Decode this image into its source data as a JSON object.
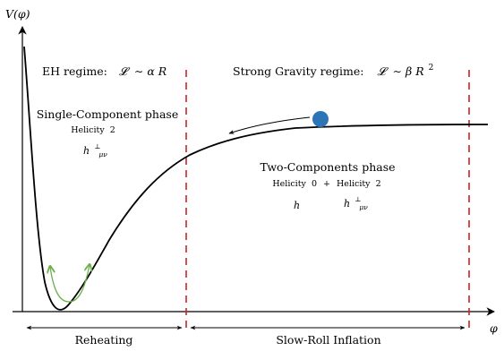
{
  "axes": {
    "y_label": "V(φ)",
    "x_label": "φ"
  },
  "regimes": {
    "eh": {
      "name": "EH regime:",
      "lagrangian_lhs": "𝓛",
      "lagrangian_rhs": "∼ α R"
    },
    "strong": {
      "name": "Strong Gravity regime:",
      "lagrangian_lhs": "𝓛",
      "lagrangian_rhs": "∼ β R",
      "lagrangian_exp": "2"
    }
  },
  "phases": {
    "single": {
      "title": "Single-Component phase",
      "helicity_word": "Helicity",
      "helicity_num": "2",
      "field": "h",
      "field_sup": "⊥",
      "field_sub": "μν"
    },
    "two": {
      "title": "Two-Components phase",
      "helicity_a_word": "Helicity",
      "helicity_a_num": "0",
      "plus": "+",
      "helicity_b_word": "Helicity",
      "helicity_b_num": "2",
      "field_scalar": "h",
      "field_tensor": "h",
      "field_sup": "⊥",
      "field_sub": "μν"
    }
  },
  "intervals": {
    "reheating": "Reheating",
    "inflation": "Slow-Roll Inflation"
  },
  "colors": {
    "curve": "#000000",
    "divider": "#cc2222",
    "ball": "#2e75b6",
    "oscillation": "#6ab04c"
  },
  "icons": {
    "ball": "rolling-ball-icon",
    "roll_arrow": "roll-direction-arrow-icon",
    "oscillation": "oscillation-arrow-icon"
  }
}
